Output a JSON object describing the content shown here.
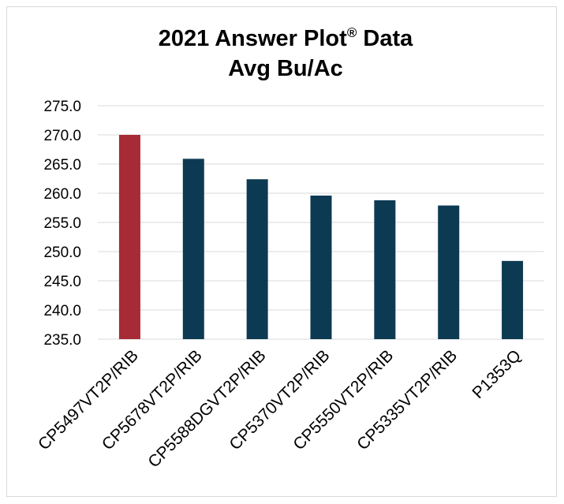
{
  "chart_data": {
    "type": "bar",
    "title": "2021 Answer Plot",
    "title_mark": "®",
    "title_suffix": " Data",
    "subtitle": "Avg Bu/Ac",
    "xlabel": "",
    "ylabel": "",
    "categories": [
      "CP5497VT2P/RIB",
      "CP5678VT2P/RIB",
      "CP5588DGVT2P/RIB",
      "CP5370VT2P/RIB",
      "CP5550VT2P/RIB",
      "CP5335VT2P/RIB",
      "P1353Q"
    ],
    "values": [
      270.0,
      265.9,
      262.4,
      259.6,
      258.8,
      257.9,
      248.4
    ],
    "ylim": [
      235.0,
      275.0
    ],
    "yticks": [
      235.0,
      240.0,
      245.0,
      250.0,
      255.0,
      260.0,
      265.0,
      270.0,
      275.0
    ],
    "ytick_labels": [
      "235.0",
      "240.0",
      "245.0",
      "250.0",
      "255.0",
      "260.0",
      "265.0",
      "270.0",
      "275.0"
    ],
    "grid": true,
    "legend": "none",
    "colors": {
      "highlight": "#a72b36",
      "default": "#0d3a53",
      "grid": "#d9d9d9"
    },
    "highlight_index": 0
  }
}
